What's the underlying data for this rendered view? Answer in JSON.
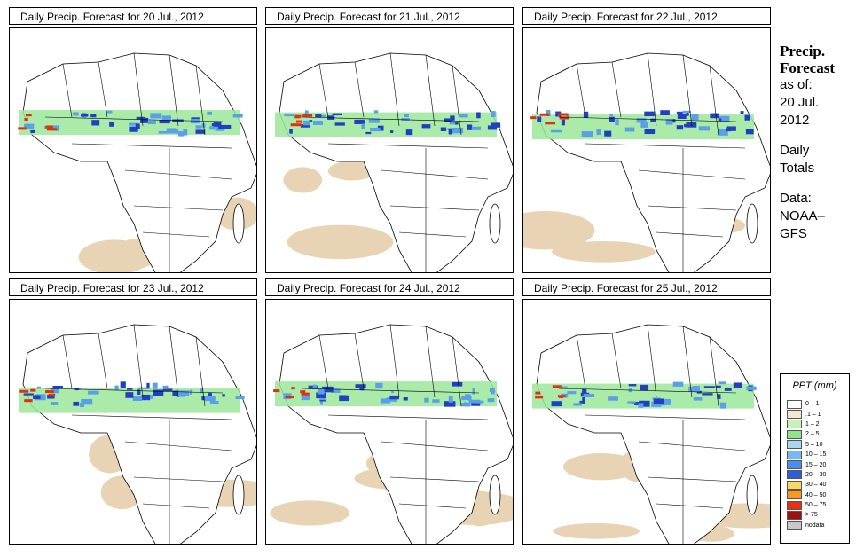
{
  "panels": [
    {
      "title": "Daily Precip. Forecast for  20 Jul., 2012"
    },
    {
      "title": "Daily Precip. Forecast for  21 Jul., 2012"
    },
    {
      "title": "Daily Precip. Forecast for  22 Jul., 2012"
    },
    {
      "title": "Daily Precip. Forecast for  23 Jul., 2012"
    },
    {
      "title": "Daily Precip. Forecast for  24 Jul., 2012"
    },
    {
      "title": "Daily Precip. Forecast for  25 Jul., 2012"
    }
  ],
  "side": {
    "title_line1": "Precip.",
    "title_line2": "Forecast",
    "asof_line1": "as of:",
    "asof_line2": "20 Jul.",
    "asof_line3": "2012",
    "totals_line1": "Daily",
    "totals_line2": "Totals",
    "data_line1": "Data:",
    "data_line2": "NOAA–",
    "data_line3": "GFS"
  },
  "legend": {
    "title": "PPT (mm)",
    "items": [
      {
        "label": "0 – 1",
        "color": "#ffffff"
      },
      {
        "label": ".1 – 1",
        "color": "#f5e6cf"
      },
      {
        "label": "1 – 2",
        "color": "#c8f0b8"
      },
      {
        "label": "2 – 5",
        "color": "#8ee68a"
      },
      {
        "label": "5 – 10",
        "color": "#a8d8f0"
      },
      {
        "label": "10 – 15",
        "color": "#78b8f0"
      },
      {
        "label": "15 – 20",
        "color": "#4a90e8"
      },
      {
        "label": "20 – 30",
        "color": "#2a5fd8"
      },
      {
        "label": "30 – 40",
        "color": "#f8d860"
      },
      {
        "label": "40 – 50",
        "color": "#f89820"
      },
      {
        "label": "50 – 75",
        "color": "#e83010"
      },
      {
        "label": "> 75",
        "color": "#a01010"
      },
      {
        "label": "nodata",
        "color": "#c8c8c8"
      }
    ]
  },
  "colors": {
    "land_dry": "#e8d4b4",
    "light_rain": "#9be89a",
    "moderate_rain": "#5aa0e8",
    "heavy_rain": "#2040c0",
    "extreme_rain": "#e03010",
    "border": "#000000"
  }
}
